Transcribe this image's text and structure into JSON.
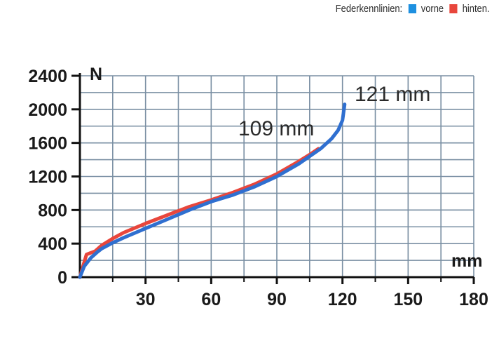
{
  "legend": {
    "title": "Federkennlinien:",
    "items": [
      {
        "label": "vorne",
        "color": "#1e90e0"
      },
      {
        "label": "hinten.",
        "color": "#e8463c"
      }
    ]
  },
  "chart_data": {
    "type": "line",
    "title": "",
    "xlabel": "mm",
    "ylabel": "N",
    "xlim": [
      0,
      180
    ],
    "ylim": [
      0,
      2400
    ],
    "x_ticks": [
      30,
      60,
      90,
      120,
      150,
      180
    ],
    "y_ticks": [
      0,
      400,
      800,
      1200,
      1600,
      2000,
      2400
    ],
    "grid": true,
    "series": [
      {
        "name": "hinten.",
        "color": "#e8463c",
        "x": [
          0,
          2,
          3,
          5,
          7,
          10,
          15,
          20,
          30,
          40,
          50,
          60,
          70,
          80,
          90,
          100,
          105,
          109
        ],
        "y": [
          0,
          180,
          270,
          290,
          310,
          380,
          460,
          530,
          640,
          740,
          840,
          920,
          1010,
          1110,
          1230,
          1380,
          1460,
          1530
        ]
      },
      {
        "name": "vorne",
        "color": "#2f6fd0",
        "x": [
          0,
          2,
          5,
          8,
          10,
          15,
          20,
          30,
          40,
          50,
          60,
          70,
          80,
          90,
          100,
          110,
          115,
          118,
          120,
          121
        ],
        "y": [
          0,
          130,
          230,
          300,
          340,
          410,
          470,
          580,
          690,
          800,
          900,
          980,
          1080,
          1200,
          1350,
          1530,
          1650,
          1750,
          1870,
          2060
        ]
      }
    ],
    "annotations": [
      {
        "text": "109 mm"
      },
      {
        "text": "121 mm"
      }
    ]
  }
}
